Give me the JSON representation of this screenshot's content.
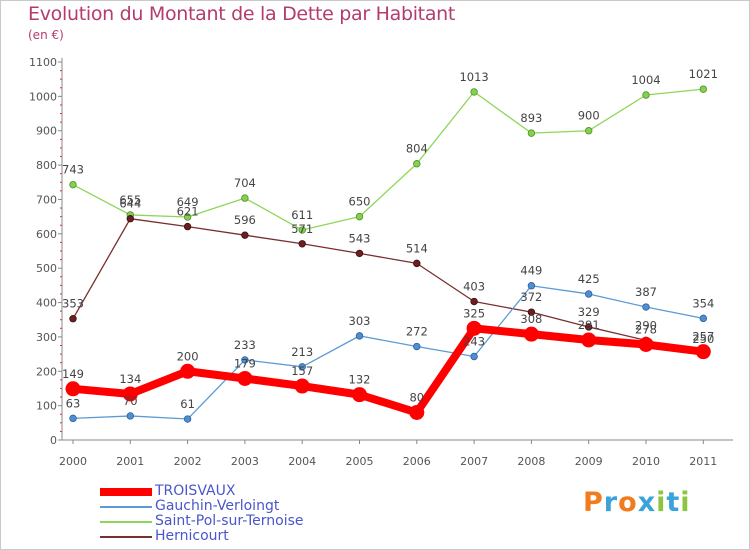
{
  "header": {
    "title": "Evolution du Montant de la Dette par Habitant",
    "subtitle": "(en €)"
  },
  "logo": {
    "letters": [
      "P",
      "r",
      "o",
      "x",
      "i",
      "t",
      "i"
    ],
    "colors": [
      "#f07c1e",
      "#3aa3d9",
      "#f07c1e",
      "#3aa3d9",
      "#8cc63f",
      "#3aa3d9",
      "#8cc63f"
    ]
  },
  "chart_data": {
    "type": "line",
    "title": "Evolution du Montant de la Dette par Habitant",
    "subtitle": "(en €)",
    "xlabel": "",
    "ylabel": "",
    "x": [
      "2000",
      "2001",
      "2002",
      "2003",
      "2004",
      "2005",
      "2006",
      "2007",
      "2008",
      "2009",
      "2010",
      "2011"
    ],
    "ylim": [
      0,
      1100
    ],
    "yticks": [
      0,
      100,
      200,
      300,
      400,
      500,
      600,
      700,
      800,
      900,
      1000,
      1100
    ],
    "grid": false,
    "legend_position": "bottom-left",
    "series": [
      {
        "name": "TROISVAUX",
        "color": "#ff0000",
        "values": [
          149,
          134,
          200,
          179,
          157,
          132,
          80,
          325,
          308,
          291,
          278,
          257
        ]
      },
      {
        "name": "Gauchin-Verloingt",
        "color": "#5b9bd5",
        "values": [
          63,
          70,
          61,
          233,
          213,
          303,
          272,
          243,
          449,
          425,
          387,
          354
        ]
      },
      {
        "name": "Saint-Pol-sur-Ternoise",
        "color": "#8ed65a",
        "values": [
          743,
          655,
          649,
          704,
          611,
          650,
          804,
          1013,
          893,
          900,
          1004,
          1021
        ]
      },
      {
        "name": "Hernicourt",
        "color": "#7a2e2e",
        "values": [
          353,
          644,
          621,
          596,
          571,
          543,
          514,
          403,
          372,
          329,
          290,
          250
        ]
      }
    ]
  }
}
